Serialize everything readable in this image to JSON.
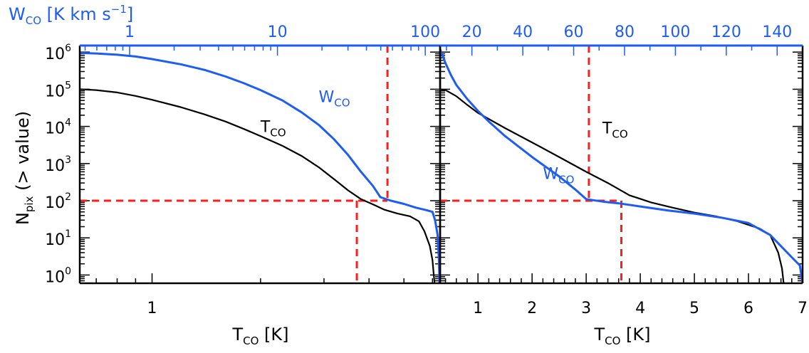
{
  "chart_data": [
    {
      "type": "line",
      "panel": "left",
      "scale": "log-log",
      "ylabel": "N",
      "ylabel_sub": "pix",
      "ylabel_rest": " (> value)",
      "xlabel": "T",
      "xlabel_sub": "CO",
      "xlabel_unit": " [K]",
      "top_axis_label": "W",
      "top_axis_sub": "CO",
      "top_axis_unit": " [K km s",
      "top_axis_unit_exp": "−1",
      "top_axis_unit_close": "]",
      "xlim": [
        0.63,
        6.3
      ],
      "ylim": [
        0.6,
        1500000
      ],
      "top_xlim": [
        0.46,
        126
      ],
      "x_ticks": [
        {
          "value": 1,
          "label": "1"
        }
      ],
      "top_ticks": [
        {
          "value": 1,
          "label": "1"
        },
        {
          "value": 10,
          "label": "10"
        },
        {
          "value": 100,
          "label": "100"
        }
      ],
      "y_ticks": [
        {
          "value": 1,
          "base": "10",
          "exp": "0"
        },
        {
          "value": 10,
          "base": "10",
          "exp": "1"
        },
        {
          "value": 100,
          "base": "10",
          "exp": "2"
        },
        {
          "value": 1000,
          "base": "10",
          "exp": "3"
        },
        {
          "value": 10000,
          "base": "10",
          "exp": "4"
        },
        {
          "value": 100000,
          "base": "10",
          "exp": "5"
        },
        {
          "value": 1000000,
          "base": "10",
          "exp": "6"
        }
      ],
      "series": [
        {
          "name": "T",
          "sub": "CO",
          "color": "#000000",
          "label_at": [
            2.0,
            7000
          ],
          "points": [
            [
              0.63,
              100000
            ],
            [
              0.7,
              95000
            ],
            [
              0.8,
              82000
            ],
            [
              0.9,
              66000
            ],
            [
              1.0,
              52000
            ],
            [
              1.2,
              33000
            ],
            [
              1.4,
              21000
            ],
            [
              1.6,
              13500
            ],
            [
              1.8,
              8500
            ],
            [
              2.0,
              5500
            ],
            [
              2.3,
              3000
            ],
            [
              2.6,
              1600
            ],
            [
              2.9,
              800
            ],
            [
              3.2,
              380
            ],
            [
              3.5,
              190
            ],
            [
              3.8,
              110
            ],
            [
              4.1,
              80
            ],
            [
              4.4,
              58
            ],
            [
              4.8,
              45
            ],
            [
              5.2,
              38
            ],
            [
              5.5,
              28
            ],
            [
              5.7,
              15
            ],
            [
              5.9,
              6
            ],
            [
              6.0,
              2.5
            ],
            [
              6.05,
              1
            ],
            [
              6.08,
              0.6
            ]
          ]
        },
        {
          "name": "W",
          "sub": "CO",
          "color": "#1f5cf2",
          "label_at": [
            2.9,
            45000
          ],
          "points": [
            [
              0.63,
              950000
            ],
            [
              0.7,
              920000
            ],
            [
              0.8,
              850000
            ],
            [
              0.9,
              760000
            ],
            [
              1.0,
              650000
            ],
            [
              1.2,
              470000
            ],
            [
              1.4,
              330000
            ],
            [
              1.6,
              220000
            ],
            [
              1.8,
              145000
            ],
            [
              2.0,
              95000
            ],
            [
              2.3,
              50000
            ],
            [
              2.6,
              24000
            ],
            [
              2.9,
              11000
            ],
            [
              3.2,
              4500
            ],
            [
              3.5,
              1700
            ],
            [
              3.8,
              600
            ],
            [
              4.1,
              250
            ],
            [
              4.3,
              125
            ],
            [
              4.6,
              100
            ],
            [
              5.0,
              82
            ],
            [
              5.4,
              65
            ],
            [
              5.8,
              55
            ],
            [
              6.0,
              50
            ],
            [
              6.1,
              30
            ],
            [
              6.2,
              12
            ],
            [
              6.25,
              3
            ],
            [
              6.28,
              0.6
            ]
          ]
        }
      ],
      "reference_lines": {
        "horizontal_y": 100,
        "vertical_x": [
          3.7,
          4.5
        ],
        "color": "#ff1e1e"
      }
    },
    {
      "type": "line",
      "panel": "right",
      "scale": "linear-x, log-y",
      "xlabel": "T",
      "xlabel_sub": "CO",
      "xlabel_unit": " [K]",
      "xlim": [
        0.3,
        7.0
      ],
      "ylim": [
        0.6,
        1500000
      ],
      "top_xlim": [
        7.5,
        150
      ],
      "x_ticks": [
        {
          "value": 1,
          "label": "1"
        },
        {
          "value": 2,
          "label": "2"
        },
        {
          "value": 3,
          "label": "3"
        },
        {
          "value": 4,
          "label": "4"
        },
        {
          "value": 5,
          "label": "5"
        },
        {
          "value": 6,
          "label": "6"
        },
        {
          "value": 7,
          "label": "7"
        }
      ],
      "top_ticks": [
        {
          "value": 20,
          "label": "20"
        },
        {
          "value": 40,
          "label": "40"
        },
        {
          "value": 60,
          "label": "60"
        },
        {
          "value": 80,
          "label": "80"
        },
        {
          "value": 100,
          "label": "100"
        },
        {
          "value": 120,
          "label": "120"
        },
        {
          "value": 140,
          "label": "140"
        }
      ],
      "series": [
        {
          "name": "T",
          "sub": "CO",
          "color": "#000000",
          "label_at": [
            3.3,
            6500
          ],
          "points": [
            [
              0.3,
              100000
            ],
            [
              0.4,
              95000
            ],
            [
              0.6,
              65000
            ],
            [
              0.8,
              38000
            ],
            [
              1.0,
              23000
            ],
            [
              1.5,
              9000
            ],
            [
              2.0,
              3700
            ],
            [
              2.5,
              1500
            ],
            [
              3.0,
              600
            ],
            [
              3.4,
              300
            ],
            [
              3.8,
              140
            ],
            [
              4.2,
              90
            ],
            [
              4.6,
              65
            ],
            [
              5.0,
              48
            ],
            [
              5.4,
              38
            ],
            [
              5.8,
              28
            ],
            [
              6.2,
              18
            ],
            [
              6.4,
              12
            ],
            [
              6.55,
              4
            ],
            [
              6.62,
              1.5
            ],
            [
              6.65,
              0.6
            ]
          ]
        },
        {
          "name": "W",
          "sub": "CO",
          "color": "#1f5cf2",
          "label_at": [
            2.2,
            380
          ],
          "points": [
            [
              0.3,
              1200000
            ],
            [
              0.4,
              500000
            ],
            [
              0.5,
              240000
            ],
            [
              0.6,
              130000
            ],
            [
              0.8,
              55000
            ],
            [
              1.0,
              26000
            ],
            [
              1.2,
              13500
            ],
            [
              1.5,
              5500
            ],
            [
              2.0,
              1500
            ],
            [
              2.5,
              450
            ],
            [
              2.8,
              200
            ],
            [
              3.0,
              110
            ],
            [
              3.3,
              95
            ],
            [
              3.6,
              85
            ],
            [
              4.0,
              70
            ],
            [
              4.5,
              55
            ],
            [
              5.0,
              45
            ],
            [
              5.5,
              35
            ],
            [
              6.0,
              25
            ],
            [
              6.4,
              12
            ],
            [
              6.6,
              6
            ],
            [
              6.8,
              3
            ],
            [
              6.95,
              1.8
            ],
            [
              7.0,
              0.6
            ]
          ]
        }
      ],
      "reference_lines": {
        "horizontal_y": 100,
        "vertical_x": [
          3.05,
          3.65
        ],
        "color": "#ff1e1e"
      }
    }
  ]
}
